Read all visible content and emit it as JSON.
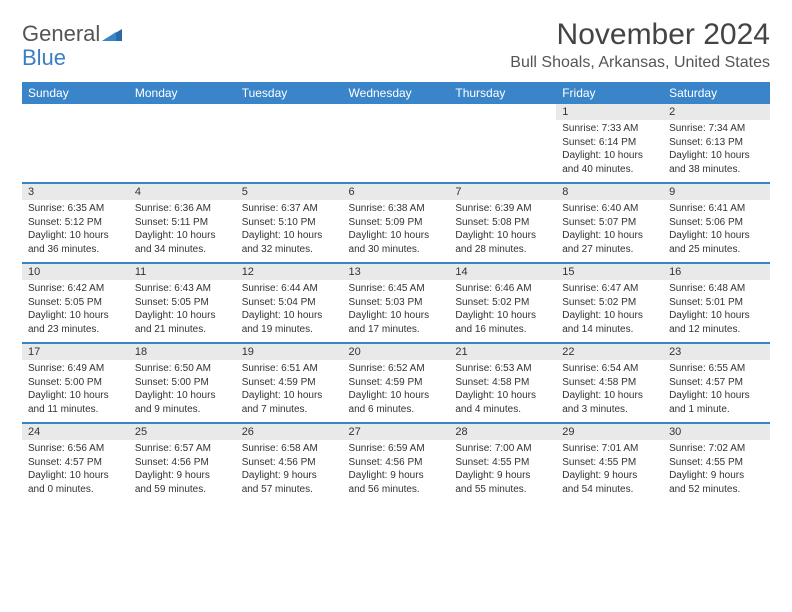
{
  "logo": {
    "line1": "General",
    "line2": "Blue"
  },
  "title": "November 2024",
  "location": "Bull Shoals, Arkansas, United States",
  "colors": {
    "header_bg": "#3a85c9",
    "header_text": "#ffffff",
    "daynum_bg": "#e9e9e9",
    "rule": "#3a85c9"
  },
  "dayHeaders": [
    "Sunday",
    "Monday",
    "Tuesday",
    "Wednesday",
    "Thursday",
    "Friday",
    "Saturday"
  ],
  "weeks": [
    [
      {
        "n": "",
        "sunrise": "",
        "sunset": "",
        "daylight1": "",
        "daylight2": ""
      },
      {
        "n": "",
        "sunrise": "",
        "sunset": "",
        "daylight1": "",
        "daylight2": ""
      },
      {
        "n": "",
        "sunrise": "",
        "sunset": "",
        "daylight1": "",
        "daylight2": ""
      },
      {
        "n": "",
        "sunrise": "",
        "sunset": "",
        "daylight1": "",
        "daylight2": ""
      },
      {
        "n": "",
        "sunrise": "",
        "sunset": "",
        "daylight1": "",
        "daylight2": ""
      },
      {
        "n": "1",
        "sunrise": "Sunrise: 7:33 AM",
        "sunset": "Sunset: 6:14 PM",
        "daylight1": "Daylight: 10 hours",
        "daylight2": "and 40 minutes."
      },
      {
        "n": "2",
        "sunrise": "Sunrise: 7:34 AM",
        "sunset": "Sunset: 6:13 PM",
        "daylight1": "Daylight: 10 hours",
        "daylight2": "and 38 minutes."
      }
    ],
    [
      {
        "n": "3",
        "sunrise": "Sunrise: 6:35 AM",
        "sunset": "Sunset: 5:12 PM",
        "daylight1": "Daylight: 10 hours",
        "daylight2": "and 36 minutes."
      },
      {
        "n": "4",
        "sunrise": "Sunrise: 6:36 AM",
        "sunset": "Sunset: 5:11 PM",
        "daylight1": "Daylight: 10 hours",
        "daylight2": "and 34 minutes."
      },
      {
        "n": "5",
        "sunrise": "Sunrise: 6:37 AM",
        "sunset": "Sunset: 5:10 PM",
        "daylight1": "Daylight: 10 hours",
        "daylight2": "and 32 minutes."
      },
      {
        "n": "6",
        "sunrise": "Sunrise: 6:38 AM",
        "sunset": "Sunset: 5:09 PM",
        "daylight1": "Daylight: 10 hours",
        "daylight2": "and 30 minutes."
      },
      {
        "n": "7",
        "sunrise": "Sunrise: 6:39 AM",
        "sunset": "Sunset: 5:08 PM",
        "daylight1": "Daylight: 10 hours",
        "daylight2": "and 28 minutes."
      },
      {
        "n": "8",
        "sunrise": "Sunrise: 6:40 AM",
        "sunset": "Sunset: 5:07 PM",
        "daylight1": "Daylight: 10 hours",
        "daylight2": "and 27 minutes."
      },
      {
        "n": "9",
        "sunrise": "Sunrise: 6:41 AM",
        "sunset": "Sunset: 5:06 PM",
        "daylight1": "Daylight: 10 hours",
        "daylight2": "and 25 minutes."
      }
    ],
    [
      {
        "n": "10",
        "sunrise": "Sunrise: 6:42 AM",
        "sunset": "Sunset: 5:05 PM",
        "daylight1": "Daylight: 10 hours",
        "daylight2": "and 23 minutes."
      },
      {
        "n": "11",
        "sunrise": "Sunrise: 6:43 AM",
        "sunset": "Sunset: 5:05 PM",
        "daylight1": "Daylight: 10 hours",
        "daylight2": "and 21 minutes."
      },
      {
        "n": "12",
        "sunrise": "Sunrise: 6:44 AM",
        "sunset": "Sunset: 5:04 PM",
        "daylight1": "Daylight: 10 hours",
        "daylight2": "and 19 minutes."
      },
      {
        "n": "13",
        "sunrise": "Sunrise: 6:45 AM",
        "sunset": "Sunset: 5:03 PM",
        "daylight1": "Daylight: 10 hours",
        "daylight2": "and 17 minutes."
      },
      {
        "n": "14",
        "sunrise": "Sunrise: 6:46 AM",
        "sunset": "Sunset: 5:02 PM",
        "daylight1": "Daylight: 10 hours",
        "daylight2": "and 16 minutes."
      },
      {
        "n": "15",
        "sunrise": "Sunrise: 6:47 AM",
        "sunset": "Sunset: 5:02 PM",
        "daylight1": "Daylight: 10 hours",
        "daylight2": "and 14 minutes."
      },
      {
        "n": "16",
        "sunrise": "Sunrise: 6:48 AM",
        "sunset": "Sunset: 5:01 PM",
        "daylight1": "Daylight: 10 hours",
        "daylight2": "and 12 minutes."
      }
    ],
    [
      {
        "n": "17",
        "sunrise": "Sunrise: 6:49 AM",
        "sunset": "Sunset: 5:00 PM",
        "daylight1": "Daylight: 10 hours",
        "daylight2": "and 11 minutes."
      },
      {
        "n": "18",
        "sunrise": "Sunrise: 6:50 AM",
        "sunset": "Sunset: 5:00 PM",
        "daylight1": "Daylight: 10 hours",
        "daylight2": "and 9 minutes."
      },
      {
        "n": "19",
        "sunrise": "Sunrise: 6:51 AM",
        "sunset": "Sunset: 4:59 PM",
        "daylight1": "Daylight: 10 hours",
        "daylight2": "and 7 minutes."
      },
      {
        "n": "20",
        "sunrise": "Sunrise: 6:52 AM",
        "sunset": "Sunset: 4:59 PM",
        "daylight1": "Daylight: 10 hours",
        "daylight2": "and 6 minutes."
      },
      {
        "n": "21",
        "sunrise": "Sunrise: 6:53 AM",
        "sunset": "Sunset: 4:58 PM",
        "daylight1": "Daylight: 10 hours",
        "daylight2": "and 4 minutes."
      },
      {
        "n": "22",
        "sunrise": "Sunrise: 6:54 AM",
        "sunset": "Sunset: 4:58 PM",
        "daylight1": "Daylight: 10 hours",
        "daylight2": "and 3 minutes."
      },
      {
        "n": "23",
        "sunrise": "Sunrise: 6:55 AM",
        "sunset": "Sunset: 4:57 PM",
        "daylight1": "Daylight: 10 hours",
        "daylight2": "and 1 minute."
      }
    ],
    [
      {
        "n": "24",
        "sunrise": "Sunrise: 6:56 AM",
        "sunset": "Sunset: 4:57 PM",
        "daylight1": "Daylight: 10 hours",
        "daylight2": "and 0 minutes."
      },
      {
        "n": "25",
        "sunrise": "Sunrise: 6:57 AM",
        "sunset": "Sunset: 4:56 PM",
        "daylight1": "Daylight: 9 hours",
        "daylight2": "and 59 minutes."
      },
      {
        "n": "26",
        "sunrise": "Sunrise: 6:58 AM",
        "sunset": "Sunset: 4:56 PM",
        "daylight1": "Daylight: 9 hours",
        "daylight2": "and 57 minutes."
      },
      {
        "n": "27",
        "sunrise": "Sunrise: 6:59 AM",
        "sunset": "Sunset: 4:56 PM",
        "daylight1": "Daylight: 9 hours",
        "daylight2": "and 56 minutes."
      },
      {
        "n": "28",
        "sunrise": "Sunrise: 7:00 AM",
        "sunset": "Sunset: 4:55 PM",
        "daylight1": "Daylight: 9 hours",
        "daylight2": "and 55 minutes."
      },
      {
        "n": "29",
        "sunrise": "Sunrise: 7:01 AM",
        "sunset": "Sunset: 4:55 PM",
        "daylight1": "Daylight: 9 hours",
        "daylight2": "and 54 minutes."
      },
      {
        "n": "30",
        "sunrise": "Sunrise: 7:02 AM",
        "sunset": "Sunset: 4:55 PM",
        "daylight1": "Daylight: 9 hours",
        "daylight2": "and 52 minutes."
      }
    ]
  ]
}
